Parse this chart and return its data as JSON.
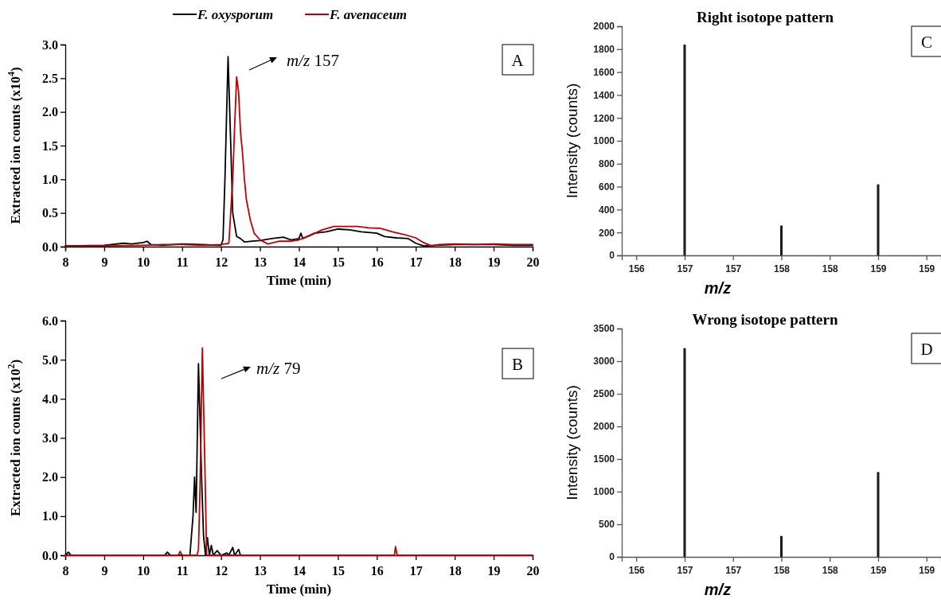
{
  "chart_data": [
    {
      "type": "line",
      "xlabel": "Time (min)",
      "ylabel": "Extracted ion counts (x10$^{4}$)",
      "legend": "top",
      "annotations": [
        "m/z 157",
        "A"
      ],
      "xlim": [
        8,
        20
      ],
      "xticks": [
        8,
        9,
        10,
        11,
        12,
        13,
        14,
        15,
        16,
        17,
        18,
        19,
        20
      ],
      "ylim": [
        0,
        3
      ],
      "yticks": [
        {
          "value": 0,
          "label": "0.0"
        },
        {
          "value": 0.5,
          "label": "0.5"
        },
        {
          "value": 1,
          "label": "1.0"
        },
        {
          "value": 1.5,
          "label": "1.5"
        },
        {
          "value": 2,
          "label": "2.0"
        },
        {
          "value": 2.5,
          "label": "2.5"
        },
        {
          "value": 3,
          "label": "3.0"
        }
      ],
      "series": [
        {
          "name": "F. oxysporum",
          "color": "#000000",
          "x": [
            8,
            9,
            9.5,
            9.7,
            10,
            10.1,
            10.2,
            10.5,
            11,
            11.5,
            12,
            12.05,
            12.1,
            12.18,
            12.25,
            12.3,
            12.4,
            12.5,
            12.6,
            12.8,
            13,
            13.3,
            13.6,
            13.8,
            14,
            14.05,
            14.1,
            14.4,
            14.7,
            15,
            15.3,
            15.6,
            16,
            16.2,
            16.5,
            16.8,
            17,
            17.2,
            17.5,
            18,
            18.5,
            19,
            19.5,
            20
          ],
          "values": [
            0.01,
            0.02,
            0.05,
            0.04,
            0.06,
            0.08,
            0.03,
            0.02,
            0.04,
            0.03,
            0.02,
            0.1,
            1.0,
            2.82,
            1.5,
            0.5,
            0.15,
            0.12,
            0.07,
            0.08,
            0.09,
            0.12,
            0.14,
            0.1,
            0.12,
            0.2,
            0.12,
            0.2,
            0.22,
            0.26,
            0.25,
            0.22,
            0.2,
            0.15,
            0.13,
            0.12,
            0.05,
            0.01,
            0.02,
            0.03,
            0.03,
            0.03,
            0.02,
            0.02
          ]
        },
        {
          "name": "F. avenaceum",
          "color": "#c00000",
          "x": [
            8,
            9,
            10,
            10.5,
            11,
            11.5,
            12,
            12.2,
            12.3,
            12.35,
            12.4,
            12.45,
            12.5,
            12.55,
            12.6,
            12.65,
            12.75,
            12.85,
            13,
            13.2,
            13.5,
            13.8,
            14,
            14.3,
            14.6,
            14.9,
            15.2,
            15.5,
            15.8,
            16.1,
            16.4,
            16.7,
            17,
            17.2,
            17.4,
            17.6,
            18,
            18.5,
            19,
            19.5,
            20
          ],
          "values": [
            0.01,
            0.01,
            0.02,
            0.03,
            0.03,
            0.02,
            0.03,
            0.05,
            1.0,
            1.8,
            2.52,
            2.3,
            1.7,
            1.4,
            1.0,
            0.7,
            0.4,
            0.2,
            0.1,
            0.04,
            0.08,
            0.08,
            0.1,
            0.17,
            0.25,
            0.3,
            0.3,
            0.3,
            0.28,
            0.27,
            0.22,
            0.18,
            0.13,
            0.06,
            0.01,
            0.03,
            0.04,
            0.03,
            0.04,
            0.03,
            0.03
          ]
        }
      ]
    },
    {
      "type": "line",
      "xlabel": "Time (min)",
      "ylabel": "Extracted ion counts (x10$^{2}$)",
      "annotations": [
        "m/z 79",
        "B"
      ],
      "xlim": [
        8,
        20
      ],
      "xticks": [
        8,
        9,
        10,
        11,
        12,
        13,
        14,
        15,
        16,
        17,
        18,
        19,
        20
      ],
      "ylim": [
        0,
        6
      ],
      "yticks": [
        {
          "value": 0,
          "label": "0.0"
        },
        {
          "value": 1,
          "label": "1.0"
        },
        {
          "value": 2,
          "label": "2.0"
        },
        {
          "value": 3,
          "label": "3.0"
        },
        {
          "value": 4,
          "label": "4.0"
        },
        {
          "value": 5,
          "label": "5.0"
        },
        {
          "value": 6,
          "label": "6.0"
        }
      ],
      "series": [
        {
          "color": "#000000",
          "x": [
            8,
            8.08,
            8.15,
            10.55,
            10.62,
            10.7,
            11.2,
            11.28,
            11.32,
            11.36,
            11.42,
            11.5,
            11.55,
            11.6,
            11.65,
            11.7,
            11.75,
            11.8,
            11.9,
            12,
            12.15,
            12.2,
            12.3,
            12.35,
            12.45,
            12.5,
            12.6
          ],
          "values": [
            0,
            0.08,
            0,
            0,
            0.08,
            0,
            0,
            1.0,
            2.0,
            1.1,
            4.9,
            2.0,
            0.5,
            0,
            0.45,
            0,
            0.25,
            0,
            0.12,
            0,
            0.06,
            0,
            0.2,
            0,
            0.15,
            0,
            0
          ]
        },
        {
          "color": "#c00000",
          "x": [
            8,
            10.9,
            10.95,
            11.0,
            11.38,
            11.42,
            11.46,
            11.52,
            11.58,
            11.63,
            16.45,
            16.48,
            16.52,
            20
          ],
          "values": [
            0,
            0,
            0.1,
            0,
            0,
            0.15,
            1.7,
            5.3,
            2.5,
            0,
            0,
            0.22,
            0,
            0
          ]
        }
      ]
    },
    {
      "type": "bar",
      "title": "Right isotope pattern",
      "xlabel": "m/z",
      "ylabel": "Intensity (counts)",
      "annotations": [
        "C"
      ],
      "xlim": [
        156.25,
        159.55
      ],
      "xticks": [
        {
          "value": 156.4,
          "label": "156"
        },
        {
          "value": 156.9,
          "label": "157"
        },
        {
          "value": 157.4,
          "label": "157"
        },
        {
          "value": 157.9,
          "label": "158"
        },
        {
          "value": 158.4,
          "label": "158"
        },
        {
          "value": 158.9,
          "label": "159"
        },
        {
          "value": 159.4,
          "label": "159"
        }
      ],
      "ylim": [
        0,
        2000
      ],
      "yticks": [
        0,
        200,
        400,
        600,
        800,
        1000,
        1200,
        1400,
        1600,
        1800,
        2000
      ],
      "x": [
        156.9,
        157.9,
        158.9
      ],
      "values": [
        1840,
        260,
        620
      ],
      "color": "#1a1a1a"
    },
    {
      "type": "bar",
      "title": "Wrong isotope pattern",
      "xlabel": "m/z",
      "ylabel": "Intensity (counts)",
      "annotations": [
        "D"
      ],
      "xlim": [
        156.25,
        159.55
      ],
      "xticks": [
        {
          "value": 156.4,
          "label": "156"
        },
        {
          "value": 156.9,
          "label": "157"
        },
        {
          "value": 157.4,
          "label": "157"
        },
        {
          "value": 157.9,
          "label": "158"
        },
        {
          "value": 158.4,
          "label": "158"
        },
        {
          "value": 158.9,
          "label": "159"
        },
        {
          "value": 159.4,
          "label": "159"
        }
      ],
      "ylim": [
        0,
        3500
      ],
      "yticks": [
        0,
        500,
        1000,
        1500,
        2000,
        2500,
        3000,
        3500
      ],
      "x": [
        156.9,
        157.9,
        158.9
      ],
      "values": [
        3200,
        320,
        1300
      ],
      "color": "#1a1a1a"
    }
  ]
}
